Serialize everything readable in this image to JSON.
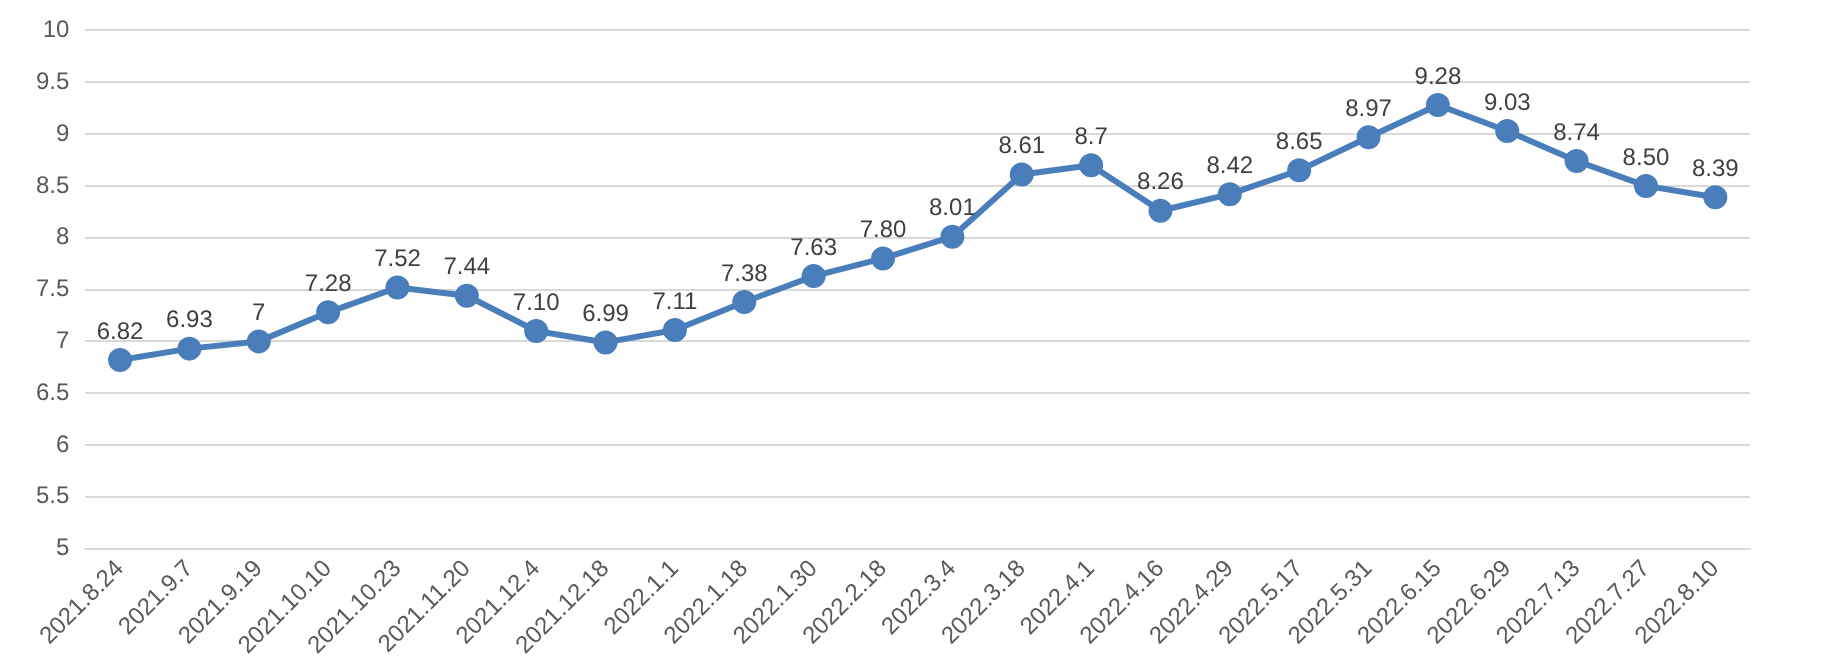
{
  "chart_data": {
    "type": "line",
    "categories": [
      "2021.8.24",
      "2021.9.7",
      "2021.9.19",
      "2021.10.10",
      "2021.10.23",
      "2021.11.20",
      "2021.12.4",
      "2021.12.18",
      "2022.1.1",
      "2022.1.18",
      "2022.1.30",
      "2022.2.18",
      "2022.3.4",
      "2022.3.18",
      "2022.4.1",
      "2022.4.16",
      "2022.4.29",
      "2022.5.17",
      "2022.5.31",
      "2022.6.15",
      "2022.6.29",
      "2022.7.13",
      "2022.7.27",
      "2022.8.10"
    ],
    "values": [
      6.82,
      6.93,
      7,
      7.28,
      7.52,
      7.44,
      7.1,
      6.99,
      7.11,
      7.38,
      7.63,
      7.8,
      8.01,
      8.61,
      8.7,
      8.26,
      8.42,
      8.65,
      8.97,
      9.28,
      9.03,
      8.74,
      8.5,
      8.39
    ],
    "value_labels": [
      "6.82",
      "6.93",
      "7",
      "7.28",
      "7.52",
      "7.44",
      "7.10",
      "6.99",
      "7.11",
      "7.38",
      "7.63",
      "7.80",
      "8.01",
      "8.61",
      "8.7",
      "8.26",
      "8.42",
      "8.65",
      "8.97",
      "9.28",
      "9.03",
      "8.74",
      "8.50",
      "8.39"
    ],
    "color": "#4a7ebb",
    "ylim": [
      5,
      10
    ],
    "yticks": [
      5,
      5.5,
      6,
      6.5,
      7,
      7.5,
      8,
      8.5,
      9,
      9.5,
      10
    ],
    "grid": "y",
    "marker": "circle",
    "line_style": "solid"
  }
}
